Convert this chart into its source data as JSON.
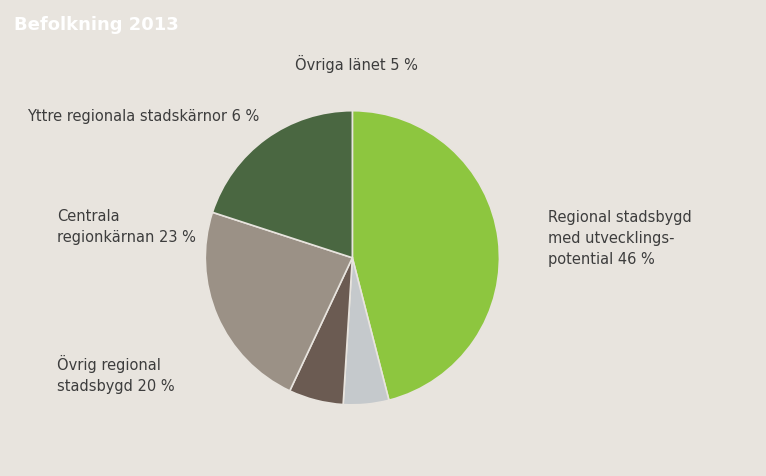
{
  "title": "Befolkning 2013",
  "title_bg_color": "#8b8680",
  "title_text_color": "#ffffff",
  "background_color": "#e8e4de",
  "plot_values": [
    46,
    5,
    6,
    23,
    20
  ],
  "plot_colors": [
    "#8dc63f",
    "#c5c9cc",
    "#6b5b52",
    "#9b9186",
    "#4a6741"
  ],
  "label_fontsize": 10.5,
  "label_color": "#3d3d3d",
  "title_fontsize": 13,
  "start_angle": 90
}
